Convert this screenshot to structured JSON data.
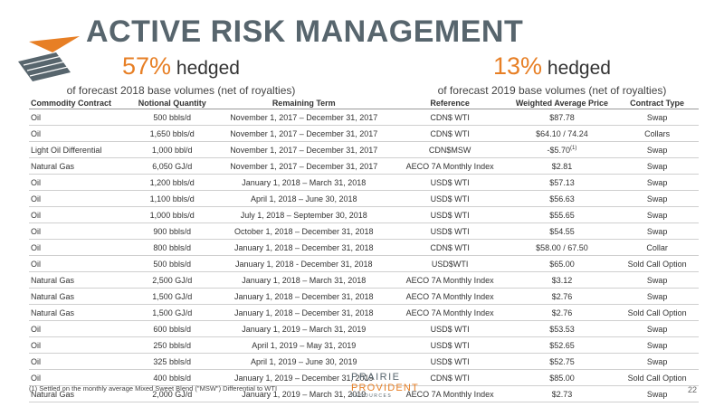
{
  "title": "ACTIVE RISK MANAGEMENT",
  "hedge_2018": {
    "percent": "57%",
    "word": " hedged",
    "subtitle": "of forecast 2018 base volumes (net of royalties)"
  },
  "hedge_2019": {
    "percent": "13%",
    "word": " hedged",
    "subtitle": "of forecast 2019 base volumes (net of royalties)"
  },
  "colors": {
    "title": "#57656d",
    "accent": "#e77f25"
  },
  "table": {
    "headers": [
      "Commodity Contract",
      "Notional Quantity",
      "Remaining Term",
      "Reference",
      "Weighted Average Price",
      "Contract Type"
    ],
    "rows": [
      [
        "Oil",
        "500 bbls/d",
        "November 1, 2017 – December 31, 2017",
        "CDN$ WTI",
        "$87.78",
        "Swap"
      ],
      [
        "Oil",
        "1,650 bbls/d",
        "November 1, 2017 – December 31, 2017",
        "CDN$ WTI",
        "$64.10 / 74.24",
        "Collars"
      ],
      [
        "Light Oil Differential",
        "1,000 bbl/d",
        "November 1, 2017 – December 31, 2017",
        "CDN$MSW",
        "-$5.70",
        "Swap"
      ],
      [
        "Natural Gas",
        "6,050 GJ/d",
        "November 1, 2017 – December 31, 2017",
        "AECO 7A Monthly Index",
        "$2.81",
        "Swap"
      ],
      [
        "Oil",
        "1,200 bbls/d",
        "January 1, 2018 – March 31, 2018",
        "USD$ WTI",
        "$57.13",
        "Swap"
      ],
      [
        "Oil",
        "1,100 bbls/d",
        "April 1, 2018 – June 30, 2018",
        "USD$ WTI",
        "$56.63",
        "Swap"
      ],
      [
        "Oil",
        "1,000 bbls/d",
        "July 1, 2018 – September 30, 2018",
        "USD$ WTI",
        "$55.65",
        "Swap"
      ],
      [
        "Oil",
        "900 bbls/d",
        "October 1, 2018 – December 31, 2018",
        "USD$ WTI",
        "$54.55",
        "Swap"
      ],
      [
        "Oil",
        "800 bbls/d",
        "January 1, 2018 – December 31, 2018",
        "CDN$ WTI",
        "$58.00 / 67.50",
        "Collar"
      ],
      [
        "Oil",
        "500 bbls/d",
        "January 1, 2018 - December 31, 2018",
        "USD$WTI",
        "$65.00",
        "Sold Call Option"
      ],
      [
        "Natural Gas",
        "2,500 GJ/d",
        "January 1, 2018 – March 31, 2018",
        "AECO 7A Monthly Index",
        "$3.12",
        "Swap"
      ],
      [
        "Natural Gas",
        "1,500 GJ/d",
        "January 1, 2018 – December 31, 2018",
        "AECO 7A Monthly Index",
        "$2.76",
        "Swap"
      ],
      [
        "Natural Gas",
        "1,500 GJ/d",
        "January 1, 2018 – December 31, 2018",
        "AECO 7A Monthly Index",
        "$2.76",
        "Sold Call Option"
      ],
      [
        "Oil",
        "600 bbls/d",
        "January 1, 2019 – March 31, 2019",
        "USD$ WTI",
        "$53.53",
        "Swap"
      ],
      [
        "Oil",
        "250 bbls/d",
        "April 1, 2019 – May 31, 2019",
        "USD$ WTI",
        "$52.65",
        "Swap"
      ],
      [
        "Oil",
        "325 bbls/d",
        "April 1, 2019 – June 30, 2019",
        "USD$ WTI",
        "$52.75",
        "Swap"
      ],
      [
        "Oil",
        "400 bbls/d",
        "January 1, 2019 – December 31, 2019",
        "CDN$ WTI",
        "$85.00",
        "Sold Call Option"
      ],
      [
        "Natural Gas",
        "2,000 GJ/d",
        "January 1, 2019 – March 31, 2019",
        "AECO 7A Monthly Index",
        "$2.73",
        "Swap"
      ]
    ],
    "footnote_marker": "(1)"
  },
  "footnote": "(1)   Settled on the monthly average Mixed Sweet Blend (\"MSW\") Differential to WTI",
  "brand": {
    "line1": "PRAIRIE",
    "line2": "PROVIDENT",
    "line3": "RESOURCES"
  },
  "page_number": "22",
  "logo_icon": "prairie-provident-logo-icon"
}
